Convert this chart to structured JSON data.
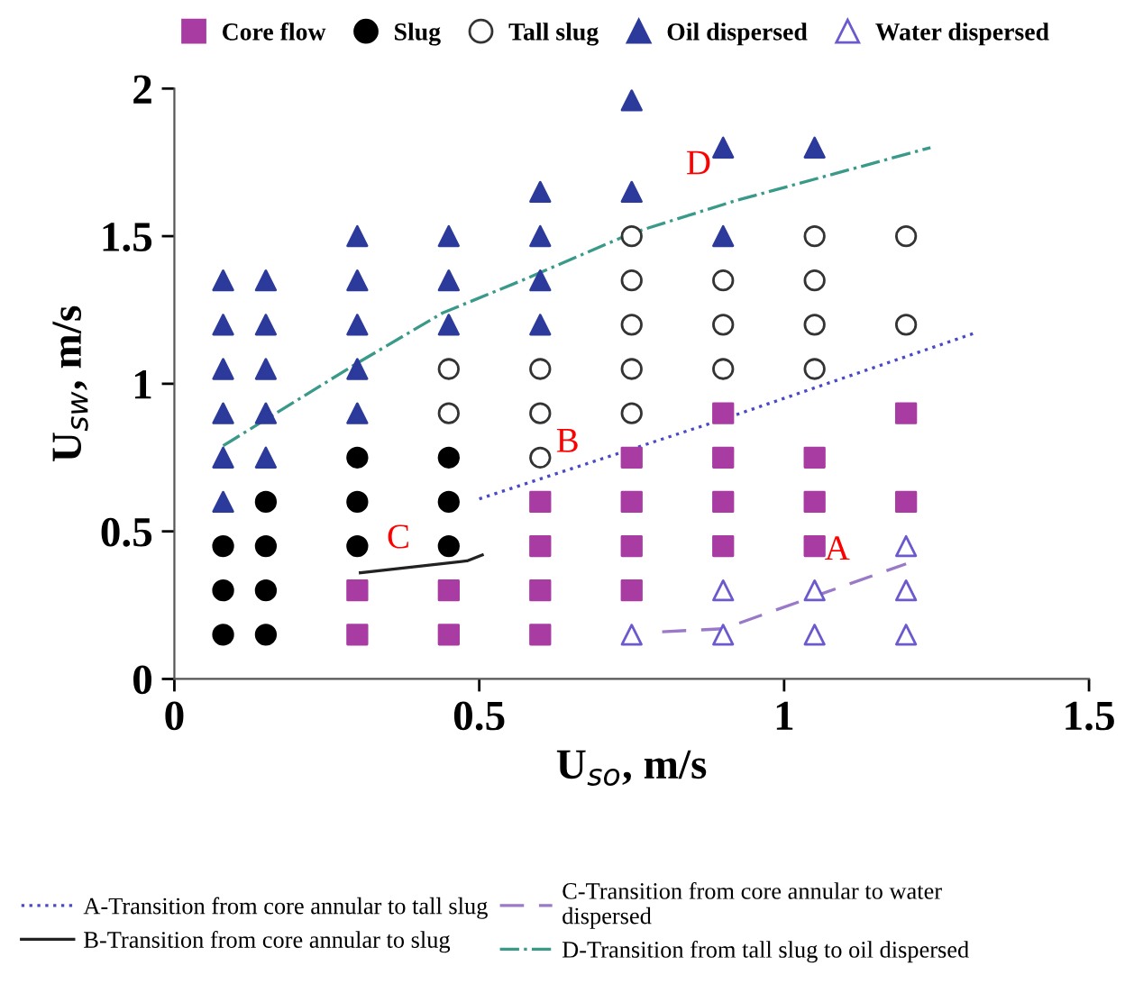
{
  "chart_data": {
    "type": "scatter",
    "xlabel": "U$_{so}$, m/s",
    "ylabel": "U$_{sw}$, m/s",
    "xlim": [
      0,
      1.5
    ],
    "xticks": [
      0,
      0.5,
      1,
      1.5
    ],
    "ylim": [
      0,
      2
    ],
    "yticks": [
      0,
      0.5,
      1,
      1.5,
      2
    ],
    "grid": false,
    "legend": "bottom",
    "series": [
      {
        "name": "Core flow",
        "color": "#a83ca3",
        "marker": "square",
        "x": [
          0.3,
          0.3,
          0.45,
          0.45,
          0.6,
          0.6,
          0.6,
          0.6,
          0.75,
          0.75,
          0.75,
          0.75,
          0.9,
          0.9,
          0.9,
          0.9,
          1.05,
          1.05,
          1.05,
          1.2,
          1.2
        ],
        "values": [
          0.15,
          0.3,
          0.15,
          0.3,
          0.15,
          0.3,
          0.45,
          0.6,
          0.3,
          0.45,
          0.6,
          0.75,
          0.45,
          0.6,
          0.75,
          0.9,
          0.45,
          0.6,
          0.75,
          0.6,
          0.9
        ]
      },
      {
        "name": "Slug",
        "color": "#000000",
        "marker": "circle",
        "x": [
          0.08,
          0.08,
          0.08,
          0.15,
          0.15,
          0.15,
          0.15,
          0.3,
          0.3,
          0.3,
          0.45,
          0.45,
          0.45
        ],
        "values": [
          0.15,
          0.3,
          0.45,
          0.15,
          0.3,
          0.45,
          0.6,
          0.45,
          0.6,
          0.75,
          0.45,
          0.6,
          0.75
        ]
      },
      {
        "name": "Tall slug",
        "color": "#333333",
        "marker": "circle",
        "x": [
          0.45,
          0.45,
          0.6,
          0.6,
          0.6,
          0.75,
          0.75,
          0.75,
          0.75,
          0.75,
          0.9,
          0.9,
          0.9,
          1.05,
          1.05,
          1.05,
          1.05,
          1.2,
          1.2
        ],
        "values": [
          0.9,
          1.05,
          0.75,
          0.9,
          1.05,
          0.9,
          1.05,
          1.2,
          1.35,
          1.5,
          1.05,
          1.2,
          1.35,
          1.05,
          1.2,
          1.35,
          1.5,
          1.2,
          1.5
        ]
      },
      {
        "name": "Oil dispersed",
        "color": "#2b3a9b",
        "marker": "triangle",
        "x": [
          0.08,
          0.08,
          0.08,
          0.08,
          0.08,
          0.08,
          0.15,
          0.15,
          0.15,
          0.15,
          0.15,
          0.3,
          0.3,
          0.3,
          0.3,
          0.3,
          0.45,
          0.45,
          0.45,
          0.6,
          0.6,
          0.6,
          0.6,
          0.75,
          0.75,
          0.9,
          0.9,
          1.05
        ],
        "values": [
          0.6,
          0.75,
          0.9,
          1.05,
          1.2,
          1.35,
          0.75,
          0.9,
          1.05,
          1.2,
          1.35,
          0.9,
          1.05,
          1.2,
          1.35,
          1.5,
          1.2,
          1.35,
          1.5,
          1.2,
          1.35,
          1.5,
          1.65,
          1.65,
          1.96,
          1.5,
          1.8,
          1.8
        ]
      },
      {
        "name": "Water dispersed",
        "color": "#6a5acd",
        "marker": "triangle",
        "x": [
          0.75,
          0.9,
          0.9,
          1.05,
          1.05,
          1.2,
          1.2,
          1.2
        ],
        "values": [
          0.15,
          0.15,
          0.3,
          0.15,
          0.3,
          0.15,
          0.3,
          0.45
        ]
      },
      {
        "name": "A-Transition from core annular to tall slug",
        "type": "line",
        "color": "#4a4ac8",
        "line_style": "dotted",
        "x": [
          0.5,
          0.9,
          1.31
        ],
        "values": [
          0.61,
          0.88,
          1.17
        ]
      },
      {
        "name": "B-Transition from core annular to slug",
        "type": "line",
        "color": "#222222",
        "line_style": "solid",
        "x": [
          0.305,
          0.48,
          0.505
        ],
        "values": [
          0.36,
          0.4,
          0.42
        ]
      },
      {
        "name": "C-Transition from core annular to water dispersed",
        "type": "line",
        "color": "#9a7ac8",
        "line_style": "dashed",
        "x": [
          0.8,
          0.9,
          1.2
        ],
        "values": [
          0.16,
          0.17,
          0.39
        ]
      },
      {
        "name": "D-Transition from tall slug to oil dispersed",
        "type": "line",
        "color": "#3a9a8a",
        "line_style": "dashdot",
        "x": [
          0.08,
          0.3,
          0.44,
          0.57,
          0.75,
          0.92,
          1.24
        ],
        "values": [
          0.79,
          1.07,
          1.24,
          1.35,
          1.51,
          1.62,
          1.8
        ]
      }
    ],
    "annotations": [
      "B",
      "C",
      "A",
      "D"
    ]
  }
}
